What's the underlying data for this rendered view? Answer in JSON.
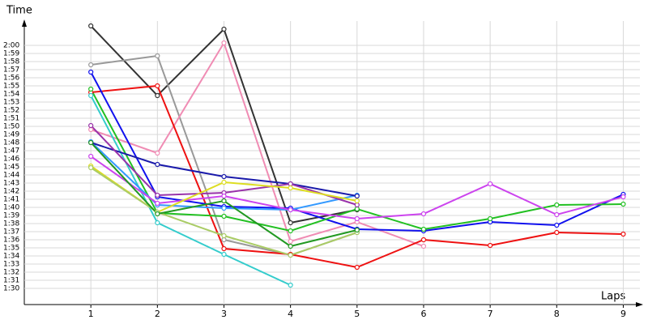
{
  "chart_data": {
    "type": "line",
    "x_label": "Laps",
    "y_label": "Time",
    "x": [
      1,
      2,
      3,
      4,
      5,
      6,
      7,
      8,
      9
    ],
    "xlim": [
      0,
      9.25
    ],
    "xticks": [
      1,
      2,
      3,
      4,
      5,
      6,
      7,
      8,
      9
    ],
    "ylim": [
      88,
      122
    ],
    "yticks": [
      {
        "value": 90,
        "label": "1:30"
      },
      {
        "value": 91,
        "label": "1:31"
      },
      {
        "value": 92,
        "label": "1:32"
      },
      {
        "value": 93,
        "label": "1:33"
      },
      {
        "value": 94,
        "label": "1:34"
      },
      {
        "value": 95,
        "label": "1:35"
      },
      {
        "value": 96,
        "label": "1:36"
      },
      {
        "value": 97,
        "label": "1:37"
      },
      {
        "value": 98,
        "label": "1:38"
      },
      {
        "value": 99,
        "label": "1:39"
      },
      {
        "value": 100,
        "label": "1:40"
      },
      {
        "value": 101,
        "label": "1:41"
      },
      {
        "value": 102,
        "label": "1:42"
      },
      {
        "value": 103,
        "label": "1:43"
      },
      {
        "value": 104,
        "label": "1:44"
      },
      {
        "value": 105,
        "label": "1:45"
      },
      {
        "value": 106,
        "label": "1:46"
      },
      {
        "value": 107,
        "label": "1:47"
      },
      {
        "value": 108,
        "label": "1:48"
      },
      {
        "value": 109,
        "label": "1:49"
      },
      {
        "value": 110,
        "label": "1:50"
      },
      {
        "value": 111,
        "label": "1:51"
      },
      {
        "value": 112,
        "label": "1:52"
      },
      {
        "value": 113,
        "label": "1:53"
      },
      {
        "value": 114,
        "label": "1:54"
      },
      {
        "value": 115,
        "label": "1:55"
      },
      {
        "value": 116,
        "label": "1:56"
      },
      {
        "value": 117,
        "label": "1:57"
      },
      {
        "value": 118,
        "label": "1:58"
      },
      {
        "value": 119,
        "label": "1:59"
      },
      {
        "value": 120,
        "label": "2:00"
      }
    ],
    "grid": true,
    "series": [
      {
        "color": "#333333",
        "values": [
          122.4,
          113.8,
          122,
          98.1,
          99.7,
          null,
          null,
          null,
          null
        ]
      },
      {
        "color": "#999999",
        "values": [
          117.6,
          118.7,
          96,
          94.1,
          96.9,
          null,
          null,
          null,
          null
        ]
      },
      {
        "color": "#f08cb4",
        "values": [
          109.6,
          106.7,
          120.3,
          95.8,
          98.2,
          95.2,
          null,
          null,
          null
        ]
      },
      {
        "color": "#ee1111",
        "values": [
          114.2,
          115,
          94.9,
          94.2,
          92.6,
          96,
          95.3,
          96.9,
          96.7
        ]
      },
      {
        "color": "#1111ee",
        "values": [
          116.7,
          101.3,
          100.1,
          99.9,
          97.3,
          97.1,
          98.2,
          97.8,
          101.6
        ]
      },
      {
        "color": "#22c022",
        "values": [
          114.6,
          99.3,
          98.9,
          97.1,
          99.8,
          97.3,
          98.6,
          100.3,
          100.4
        ]
      },
      {
        "color": "#33cccc",
        "values": [
          113.8,
          98.1,
          94.2,
          90.4,
          null,
          null,
          null,
          null,
          null
        ]
      },
      {
        "color": "#3399ff",
        "values": [
          108.1,
          100.3,
          99.9,
          99.7,
          101.5,
          null,
          null,
          null,
          null
        ]
      },
      {
        "color": "#1a1aaa",
        "values": [
          108,
          105.3,
          103.8,
          102.9,
          101.4,
          null,
          null,
          null,
          null
        ]
      },
      {
        "color": "#9933aa",
        "values": [
          110.1,
          101.5,
          101.8,
          102.9,
          100.3,
          null,
          null,
          null,
          null
        ]
      },
      {
        "color": "#cc44ee",
        "values": [
          106.3,
          100.5,
          101.4,
          99.7,
          98.6,
          99.2,
          102.9,
          99.1,
          101.3
        ]
      },
      {
        "color": "#dddd22",
        "values": [
          105.1,
          99.4,
          103.1,
          102.4,
          100.8,
          null,
          null,
          null,
          null
        ]
      },
      {
        "color": "#aacc66",
        "values": [
          104.9,
          99.4,
          96.5,
          94.1,
          96.9,
          null,
          null,
          null,
          null
        ]
      },
      {
        "color": "#229922",
        "values": [
          108,
          99.2,
          100.8,
          95.2,
          97.2,
          null,
          null,
          null,
          null
        ]
      }
    ]
  }
}
